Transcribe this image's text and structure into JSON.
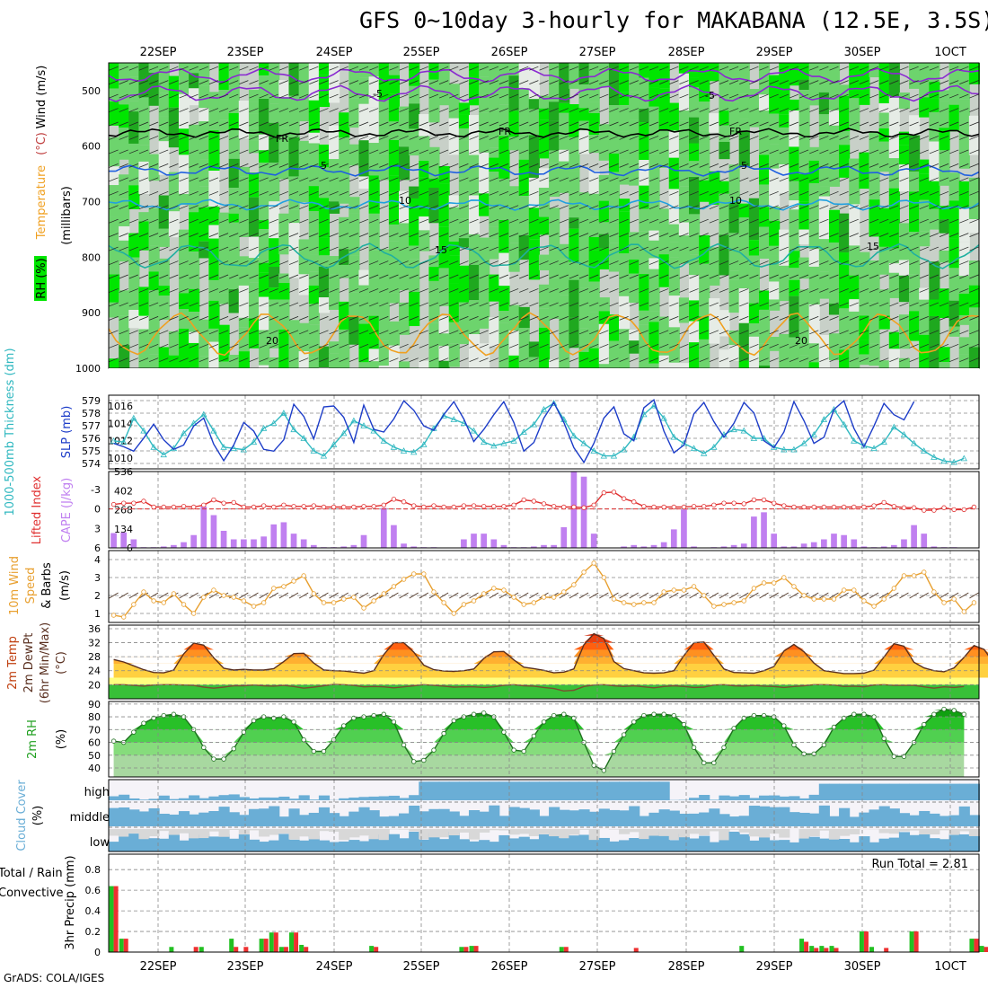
{
  "title": "GFS 0~10day 3-hourly for MAKABANA (12.5E, 3.5S)",
  "credit": "GrADS: COLA/IGES",
  "dates": [
    "22SEP",
    "23SEP",
    "24SEP",
    "25SEP",
    "26SEP",
    "27SEP",
    "28SEP",
    "29SEP",
    "30SEP",
    "1OCT"
  ],
  "colors": {
    "dark_green": "#1fa81f",
    "mid_green": "#6dd46d",
    "bright_green": "#00e600",
    "grey": "#c8d0c8",
    "cloud_blue": "#6aaed6",
    "cloud_white": "#f5f3f8",
    "rain_green": "#22c022",
    "conv_red": "#ee3030",
    "slp": "#1c3cc8",
    "thick": "#30b8c0",
    "lifted": "#e03030",
    "cape": "#c080f0",
    "wind": "#e8a030"
  },
  "chart_data": [
    {
      "type": "heatmap",
      "panel": "upper-air",
      "ylabel_parts": [
        "RH (%)",
        "Temperature",
        "(°C)",
        "Wind",
        "(m/s)"
      ],
      "ylabel_units": "(millibars)",
      "y_ticks": [
        500,
        600,
        700,
        800,
        900,
        1000
      ],
      "contour_labels": [
        "5",
        "FR",
        "5",
        "10",
        "15",
        "20"
      ],
      "isotherms_c": [
        -5,
        0,
        5,
        10,
        15,
        20
      ]
    },
    {
      "type": "line",
      "panel": "slp-thickness",
      "ylabel_left": "1000-500mb Thickness (dm)",
      "ylabel_right": "SLP (mb)",
      "thick_ticks": [
        574,
        575,
        576,
        577,
        578,
        579
      ],
      "slp_ticks": [
        1010,
        1012,
        1014,
        1016
      ],
      "series": [
        {
          "name": "SLP",
          "values": [
            1011.7,
            1011.3,
            1010.8,
            1012.3,
            1013.9,
            1012.1,
            1011.0,
            1011.5,
            1013.7,
            1014.6,
            1011.6,
            1009.7,
            1011.5,
            1014.1,
            1013.1,
            1011.0,
            1010.8,
            1012.1,
            1016.2,
            1014.8,
            1012.2,
            1015.9,
            1016.0,
            1014.7,
            1011.8,
            1016.1,
            1013.3,
            1013.0,
            1014.5,
            1016.6,
            1015.5,
            1013.7,
            1013.2,
            1015.0,
            1016.5,
            1014.5,
            1011.9,
            1013.3,
            1015.0,
            1016.5,
            1014.1,
            1010.8,
            1011.8,
            1014.6,
            1016.4,
            1014.1,
            1011.2,
            1009.5,
            1011.7,
            1014.6,
            1015.9,
            1012.8,
            1012.0,
            1015.8,
            1016.7,
            1013.1,
            1010.6,
            1011.5,
            1015.1,
            1016.4,
            1014.2,
            1012.4,
            1014.0,
            1016.4,
            1015.2,
            1012.0,
            1011.2,
            1013.0,
            1016.5,
            1014.3,
            1011.7,
            1012.4,
            1015.6,
            1016.6,
            1013.4,
            1011.3,
            1013.7,
            1016.3,
            1015.0,
            1014.4,
            1016.5
          ]
        },
        {
          "name": "Thickness",
          "values": [
            575.8,
            575.7,
            577.6,
            576.6,
            575.3,
            574.7,
            575.2,
            576.4,
            577.2,
            577.9,
            576.6,
            575.3,
            575.2,
            575.1,
            575.7,
            576.8,
            577.2,
            578.0,
            576.7,
            576.0,
            575.0,
            574.6,
            575.5,
            576.4,
            577.4,
            577.0,
            576.6,
            575.8,
            575.3,
            575.0,
            574.9,
            575.5,
            576.8,
            577.8,
            577.5,
            577.2,
            576.6,
            575.7,
            575.4,
            575.6,
            575.8,
            576.5,
            577.1,
            578.3,
            578.8,
            577.5,
            576.2,
            575.6,
            575.0,
            574.6,
            574.6,
            575.1,
            576.1,
            577.9,
            578.6,
            577.6,
            576.1,
            575.6,
            575.2,
            574.8,
            575.3,
            576.3,
            576.7,
            576.6,
            576.0,
            576.0,
            575.3,
            575.1,
            575.1,
            575.6,
            576.3,
            577.5,
            578.3,
            577.1,
            575.8,
            575.4,
            575.2,
            575.7,
            576.9,
            576.3,
            575.6,
            575.0,
            574.5,
            574.2,
            574.1,
            574.4
          ]
        }
      ]
    },
    {
      "type": "bar",
      "panel": "cape-lifted-index",
      "ylabel_left": "Lifted Index",
      "ylabel_right": "CAPE (J/kg)",
      "li_ticks": [
        -3,
        0,
        3,
        6
      ],
      "cape_ticks": [
        0,
        134,
        268,
        402,
        536
      ],
      "series": [
        {
          "name": "CAPE",
          "values": [
            104,
            108,
            60,
            5,
            5,
            10,
            20,
            40,
            90,
            290,
            230,
            120,
            60,
            60,
            60,
            80,
            165,
            180,
            100,
            60,
            20,
            5,
            5,
            10,
            20,
            90,
            0,
            280,
            160,
            30,
            10,
            5,
            5,
            0,
            0,
            60,
            100,
            100,
            60,
            20,
            5,
            5,
            10,
            20,
            20,
            145,
            536,
            500,
            100,
            0,
            0,
            10,
            20,
            10,
            20,
            40,
            130,
            270,
            10,
            0,
            5,
            10,
            20,
            30,
            220,
            250,
            100,
            10,
            10,
            30,
            40,
            60,
            100,
            90,
            60,
            10,
            5,
            10,
            20,
            60,
            160,
            100,
            10,
            5,
            5
          ]
        },
        {
          "name": "Lifted Index",
          "values": [
            -0.7,
            -0.9,
            -0.9,
            -1.2,
            -0.3,
            -0.3,
            -0.3,
            -0.4,
            -0.3,
            -0.6,
            -1.4,
            -0.9,
            -1.0,
            -0.3,
            -0.3,
            -0.5,
            -0.3,
            -0.6,
            -0.4,
            -0.4,
            -0.5,
            -0.3,
            -0.3,
            -0.3,
            -0.3,
            -0.4,
            -0.4,
            -0.6,
            -1.5,
            -1.1,
            -0.5,
            -0.3,
            -0.5,
            -0.3,
            -0.3,
            -0.5,
            -0.5,
            -0.4,
            -0.4,
            -0.4,
            -0.6,
            -1.4,
            -1.2,
            -0.8,
            -0.4,
            -0.3,
            -0.3,
            -0.2,
            -0.6,
            -2.5,
            -2.6,
            -1.6,
            -1.1,
            -0.4,
            -0.3,
            -0.3,
            -0.3,
            -0.3,
            -0.4,
            -0.4,
            -0.6,
            -0.9,
            -0.9,
            -0.8,
            -1.4,
            -1.4,
            -0.9,
            -0.5,
            -0.3,
            -0.3,
            -0.3,
            -0.3,
            -0.3,
            -0.3,
            -0.3,
            -0.3,
            -0.5,
            -1.0,
            -0.4,
            -0.2,
            -0.2,
            0.2,
            0.2,
            -0.2,
            0.1,
            0.1,
            -0.3
          ]
        }
      ]
    },
    {
      "type": "line",
      "panel": "10m-wind",
      "ylabel_parts": [
        "10m Wind",
        "Speed",
        "& Barbs",
        "(m/s)"
      ],
      "y_ticks": [
        1,
        2,
        3,
        4
      ],
      "series": [
        {
          "name": "10m Wind Speed",
          "values": [
            0.9,
            0.8,
            1.5,
            2.2,
            1.7,
            1.6,
            2.1,
            1.5,
            1.0,
            1.9,
            2.3,
            2.0,
            1.9,
            1.7,
            1.4,
            1.6,
            2.4,
            2.5,
            2.8,
            3.1,
            2.1,
            1.6,
            1.6,
            1.8,
            1.9,
            1.3,
            1.7,
            2.1,
            2.5,
            2.9,
            3.2,
            3.2,
            2.2,
            1.6,
            1.0,
            1.5,
            1.7,
            2.1,
            2.4,
            2.3,
            1.9,
            1.5,
            1.6,
            1.9,
            1.9,
            2.2,
            2.6,
            3.3,
            3.8,
            3.0,
            1.8,
            1.6,
            1.5,
            1.6,
            1.6,
            2.2,
            2.3,
            2.3,
            2.5,
            2.0,
            1.4,
            1.5,
            1.6,
            1.7,
            2.4,
            2.7,
            2.7,
            3.0,
            2.5,
            2.0,
            1.8,
            1.8,
            1.8,
            2.3,
            2.3,
            1.7,
            1.4,
            1.8,
            2.4,
            3.1,
            3.1,
            3.3,
            2.2,
            1.6,
            1.8,
            1.1,
            1.6
          ]
        }
      ]
    },
    {
      "type": "area",
      "panel": "2m-temp",
      "ylabel_parts": [
        "2m Temp",
        "2m DewPt",
        "(6hr Min/Max)",
        "(°C)"
      ],
      "y_ticks": [
        20,
        24,
        28,
        32,
        36
      ],
      "series": [
        {
          "name": "2m Temp",
          "values": [
            27.2,
            26.5,
            25.4,
            24.3,
            23.5,
            23.4,
            24.2,
            28.8,
            31.9,
            31.3,
            27.7,
            24.7,
            24.2,
            24.4,
            24.2,
            24.2,
            24.6,
            26.6,
            28.9,
            29.0,
            26.2,
            24.2,
            24.0,
            23.9,
            23.6,
            23.3,
            24.0,
            28.6,
            32.0,
            32.0,
            29.3,
            25.6,
            24.3,
            23.9,
            23.8,
            24.0,
            24.5,
            27.5,
            29.4,
            29.5,
            27.1,
            25.0,
            24.6,
            24.1,
            23.4,
            23.6,
            24.5,
            31.4,
            34.6,
            33.2,
            26.6,
            24.6,
            24.0,
            23.4,
            23.3,
            23.4,
            24.0,
            28.3,
            32.0,
            32.2,
            28.4,
            24.5,
            23.5,
            23.4,
            23.3,
            24.0,
            25.2,
            29.6,
            31.5,
            29.4,
            26.2,
            24.0,
            23.6,
            23.2,
            23.2,
            23.3,
            24.2,
            27.9,
            31.7,
            31.0,
            26.4,
            24.8,
            24.0,
            23.7,
            24.8,
            27.8,
            31.2,
            30.1,
            26.1,
            24.1,
            22.4,
            22.8
          ]
        },
        {
          "name": "2m DewPt",
          "values": [
            20.0,
            20.0,
            19.8,
            19.6,
            19.9,
            20.0,
            20.0,
            19.9,
            19.8,
            19.3,
            19.0,
            19.3,
            19.7,
            19.7,
            19.9,
            19.7,
            19.6,
            19.8,
            19.5,
            19.0,
            19.3,
            19.7,
            20.1,
            20.0,
            19.8,
            19.4,
            19.5,
            19.4,
            19.1,
            19.4,
            19.7,
            20.0,
            19.8,
            19.6,
            19.3,
            19.4,
            19.4,
            19.2,
            19.4,
            19.8,
            20.0,
            19.7,
            19.6,
            19.2,
            18.9,
            18.2,
            18.4,
            19.5,
            19.9,
            20.0,
            19.7,
            19.5,
            19.7,
            19.4,
            19.1,
            19.5,
            19.7,
            19.5,
            19.2,
            19.3,
            19.9,
            20.0,
            19.7,
            19.6,
            19.8,
            19.6,
            19.5,
            19.2,
            19.5,
            19.7,
            20.0,
            20.0,
            19.9,
            19.5,
            19.6,
            19.4,
            19.9,
            20.0,
            19.8,
            19.8,
            19.8,
            19.4,
            19.0,
            19.4,
            19.2,
            19.5
          ]
        }
      ]
    },
    {
      "type": "area",
      "panel": "2m-rh",
      "ylabel_parts": [
        "2m RH",
        "(%)"
      ],
      "y_ticks": [
        40,
        50,
        60,
        70,
        80,
        90
      ],
      "series": [
        {
          "name": "2m RH",
          "values": [
            61,
            60,
            68,
            75,
            79,
            81,
            82,
            80,
            70,
            56,
            47,
            47,
            55,
            68,
            77,
            80,
            79,
            80,
            76,
            62,
            53,
            53,
            62,
            73,
            79,
            80,
            81,
            82,
            76,
            58,
            45,
            46,
            54,
            67,
            77,
            80,
            82,
            83,
            80,
            68,
            54,
            53,
            65,
            76,
            81,
            82,
            79,
            60,
            42,
            38,
            53,
            66,
            76,
            81,
            82,
            82,
            81,
            74,
            56,
            44,
            44,
            56,
            71,
            79,
            81,
            81,
            80,
            73,
            58,
            51,
            51,
            58,
            72,
            79,
            82,
            82,
            80,
            63,
            49,
            49,
            60,
            74,
            82,
            86,
            85,
            82
          ]
        }
      ]
    },
    {
      "type": "area",
      "panel": "cloud-cover",
      "ylabel": "Cloud Cover (%)",
      "layers": [
        "high",
        "middle",
        "low"
      ]
    },
    {
      "type": "bar",
      "panel": "precip",
      "ylabel": "3hr Precip (mm)",
      "legend": [
        "Total / Rain",
        "Convective"
      ],
      "y_ticks": [
        0,
        0.2,
        0.4,
        0.6,
        0.8
      ],
      "run_total_label": "Run Total = 2.81",
      "series": [
        {
          "name": "Total / Rain",
          "values": [
            0.64,
            0.13,
            0,
            0,
            0,
            0,
            0.05,
            0,
            0,
            0.05,
            0,
            0,
            0.13,
            0,
            0,
            0.13,
            0.19,
            0.05,
            0.19,
            0.07,
            0,
            0,
            0,
            0,
            0,
            0,
            0.06,
            0,
            0,
            0,
            0,
            0,
            0,
            0,
            0,
            0.05,
            0.06,
            0,
            0,
            0,
            0,
            0,
            0,
            0,
            0,
            0.05,
            0,
            0,
            0,
            0,
            0,
            0,
            0,
            0,
            0,
            0,
            0,
            0,
            0,
            0,
            0,
            0,
            0,
            0.06,
            0,
            0,
            0,
            0,
            0,
            0.13,
            0.06,
            0.06,
            0.06,
            0,
            0,
            0.2,
            0.05,
            0,
            0,
            0,
            0.2,
            0,
            0,
            0,
            0,
            0,
            0.13,
            0.06,
            0,
            0,
            0
          ]
        },
        {
          "name": "Convective",
          "values": [
            0.64,
            0.13,
            0,
            0,
            0,
            0,
            0,
            0,
            0.05,
            0,
            0,
            0,
            0.05,
            0.05,
            0,
            0.13,
            0.19,
            0.05,
            0.19,
            0.05,
            0,
            0,
            0,
            0,
            0,
            0,
            0.05,
            0,
            0,
            0,
            0,
            0,
            0,
            0,
            0,
            0.05,
            0.06,
            0,
            0,
            0,
            0,
            0,
            0,
            0,
            0,
            0.05,
            0,
            0,
            0,
            0,
            0,
            0,
            0.04,
            0,
            0,
            0,
            0,
            0,
            0,
            0,
            0,
            0,
            0,
            0,
            0,
            0,
            0,
            0,
            0,
            0.1,
            0.04,
            0.04,
            0.04,
            0,
            0,
            0.2,
            0,
            0.04,
            0,
            0,
            0.2,
            0,
            0,
            0,
            0,
            0,
            0.13,
            0.05,
            0,
            0,
            0
          ]
        }
      ]
    }
  ]
}
